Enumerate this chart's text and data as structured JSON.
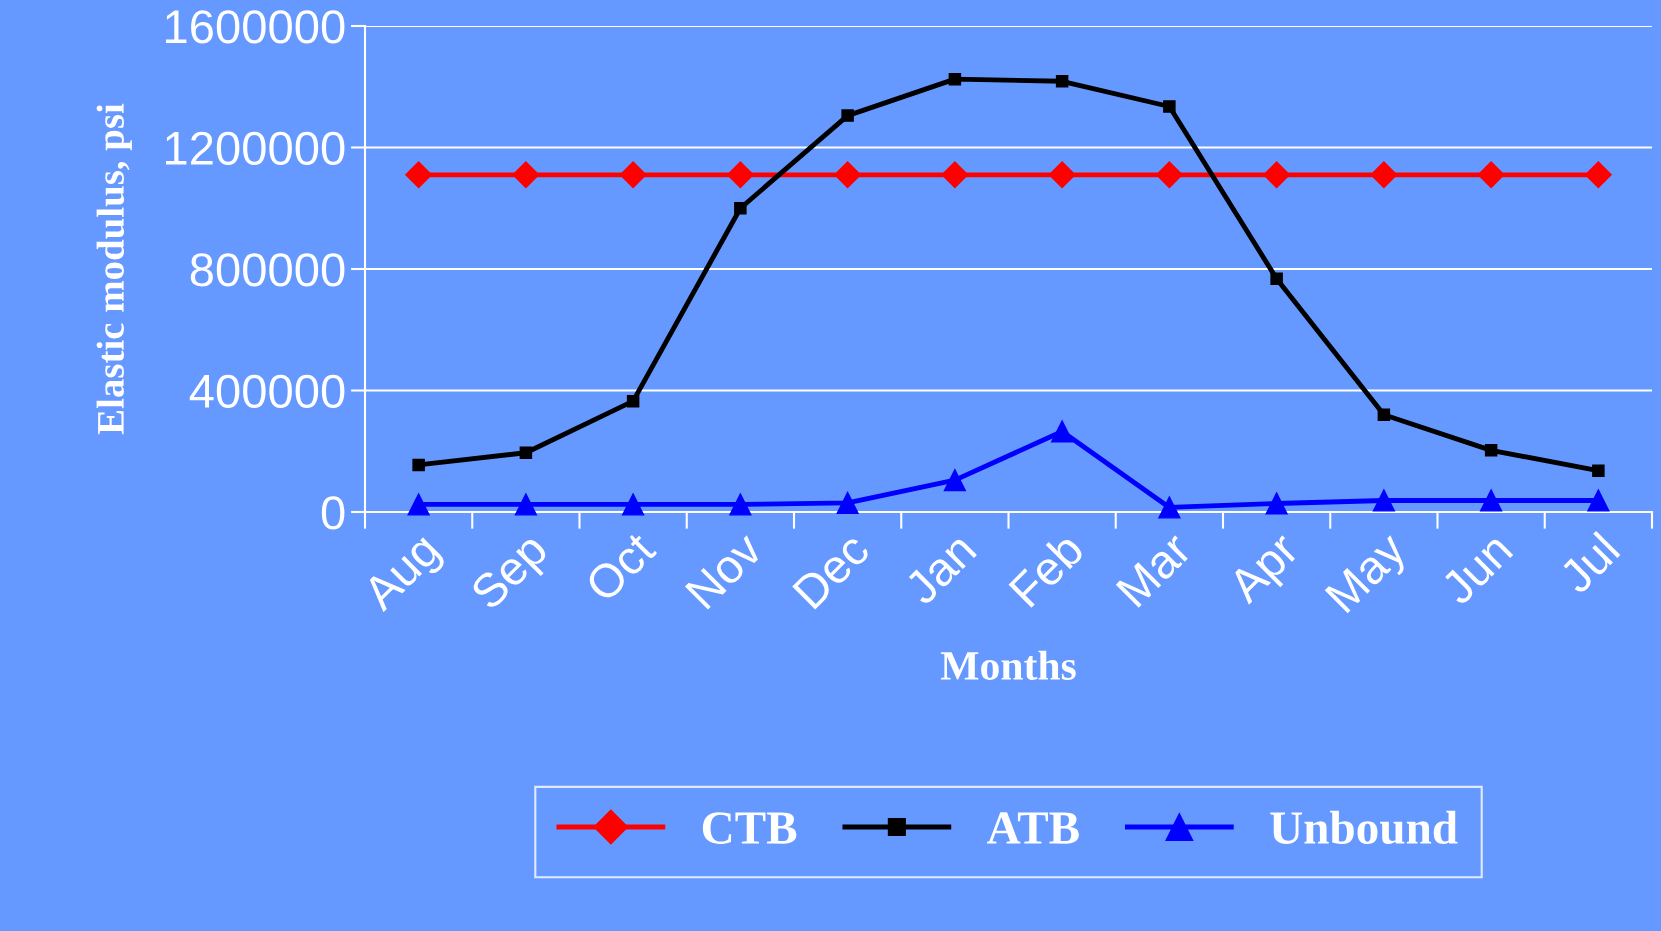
{
  "chart_data": {
    "type": "line",
    "xlabel": "Months",
    "ylabel": "Elastic modulus, psi",
    "categories": [
      "Aug",
      "Sep",
      "Oct",
      "Nov",
      "Dec",
      "Jan",
      "Feb",
      "Mar",
      "Apr",
      "May",
      "Jun",
      "Jul"
    ],
    "series": [
      {
        "name": "CTB",
        "color": "#ff0000",
        "marker": "diamond",
        "values": [
          1110000,
          1110000,
          1110000,
          1110000,
          1110000,
          1110000,
          1110000,
          1110000,
          1110000,
          1110000,
          1110000,
          1110000
        ]
      },
      {
        "name": "ATB",
        "color": "#000000",
        "marker": "square",
        "values": [
          155000,
          195000,
          365000,
          1000000,
          1305000,
          1425000,
          1418000,
          1335000,
          768000,
          320000,
          203000,
          136000
        ]
      },
      {
        "name": "Unbound",
        "color": "#0000ff",
        "marker": "triangle",
        "values": [
          25000,
          25000,
          25000,
          25000,
          30000,
          105000,
          265000,
          15000,
          28000,
          38000,
          38000,
          38000
        ]
      }
    ],
    "ylim": [
      0,
      1600000
    ],
    "yticks": [
      0,
      400000,
      800000,
      1200000,
      1600000
    ],
    "grid": "y",
    "legend": "bottom",
    "line_style": "solid"
  }
}
